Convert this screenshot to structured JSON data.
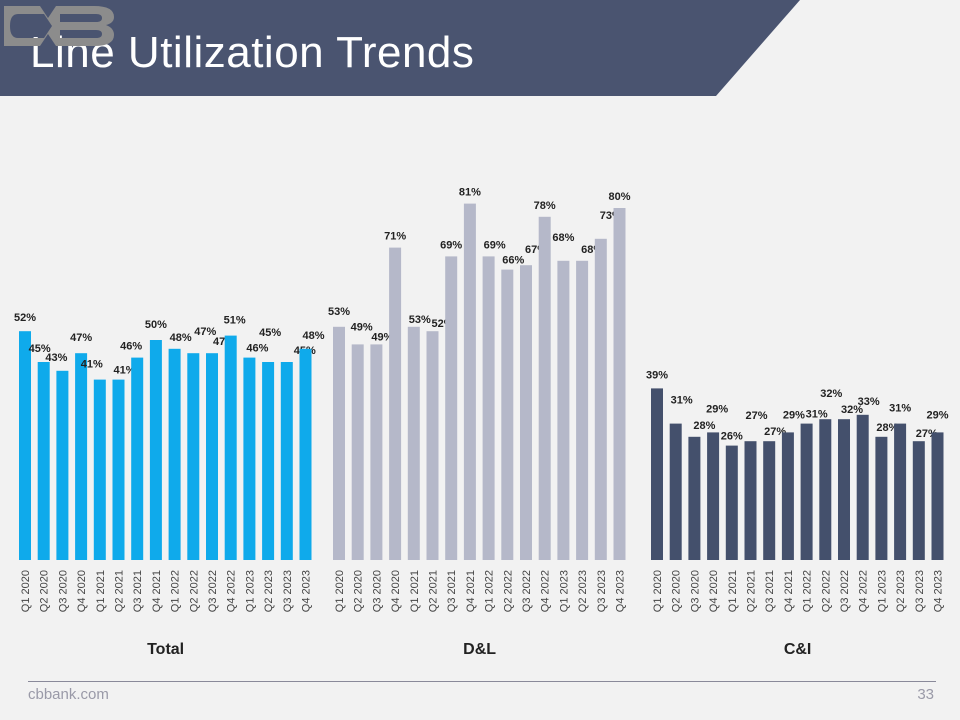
{
  "page": {
    "title": "Line Utilization Trends",
    "footer_site": "cbbank.com",
    "page_number": "33"
  },
  "colors": {
    "header_bg": "#4a5470",
    "logo": "#8c8c8c",
    "total": "#0faaeb",
    "dl": "#b5b8c9",
    "ci": "#44506c"
  },
  "chart_data": [
    {
      "type": "bar",
      "title": "Total",
      "categories": [
        "Q1 2020",
        "Q2 2020",
        "Q3 2020",
        "Q4 2020",
        "Q1 2021",
        "Q2 2021",
        "Q3 2021",
        "Q4 2021",
        "Q1 2022",
        "Q2 2022",
        "Q3 2022",
        "Q4 2022",
        "Q1 2023",
        "Q2 2023",
        "Q3 2023",
        "Q4 2023"
      ],
      "values": [
        52,
        45,
        43,
        47,
        41,
        41,
        46,
        50,
        48,
        47,
        47,
        51,
        46,
        45,
        45,
        48
      ],
      "labels": [
        "52%",
        "45%",
        "43%",
        "47%",
        "41%",
        "41%",
        "46%",
        "50%",
        "48%",
        "47%",
        "47%",
        "51%",
        "46%",
        "45%",
        "45%",
        "48%"
      ],
      "unit": "%",
      "ylim": [
        0,
        90
      ],
      "grid": false,
      "legend": "none"
    },
    {
      "type": "bar",
      "title": "D&L",
      "categories": [
        "Q1 2020",
        "Q2 2020",
        "Q3 2020",
        "Q4 2020",
        "Q1 2021",
        "Q2 2021",
        "Q3 2021",
        "Q4 2021",
        "Q1 2022",
        "Q2 2022",
        "Q3 2022",
        "Q4 2022",
        "Q1 2023",
        "Q2 2023",
        "Q3 2023",
        "Q4 2023"
      ],
      "values": [
        53,
        49,
        49,
        71,
        53,
        52,
        69,
        81,
        69,
        66,
        67,
        78,
        68,
        68,
        73,
        80
      ],
      "labels": [
        "53%",
        "49%",
        "49%",
        "71%",
        "53%",
        "52%",
        "69%",
        "81%",
        "69%",
        "66%",
        "67%",
        "78%",
        "68%",
        "68%",
        "73%",
        "80%"
      ],
      "unit": "%",
      "ylim": [
        0,
        90
      ],
      "grid": false,
      "legend": "none"
    },
    {
      "type": "bar",
      "title": "C&I",
      "categories": [
        "Q1 2020",
        "Q2 2020",
        "Q3 2020",
        "Q4 2020",
        "Q1 2021",
        "Q2 2021",
        "Q3 2021",
        "Q4 2021",
        "Q1 2022",
        "Q2 2022",
        "Q3 2022",
        "Q4 2022",
        "Q1 2023",
        "Q2 2023",
        "Q3 2023",
        "Q4 2023"
      ],
      "values": [
        39,
        31,
        28,
        29,
        26,
        27,
        27,
        29,
        31,
        32,
        32,
        33,
        28,
        31,
        27,
        29
      ],
      "labels": [
        "39%",
        "31%",
        "28%",
        "29%",
        "26%",
        "27%",
        "27%",
        "29%",
        "31%",
        "32%",
        "32%",
        "33%",
        "28%",
        "31%",
        "27%",
        "29%"
      ],
      "unit": "%",
      "ylim": [
        0,
        90
      ],
      "grid": false,
      "legend": "none"
    }
  ]
}
